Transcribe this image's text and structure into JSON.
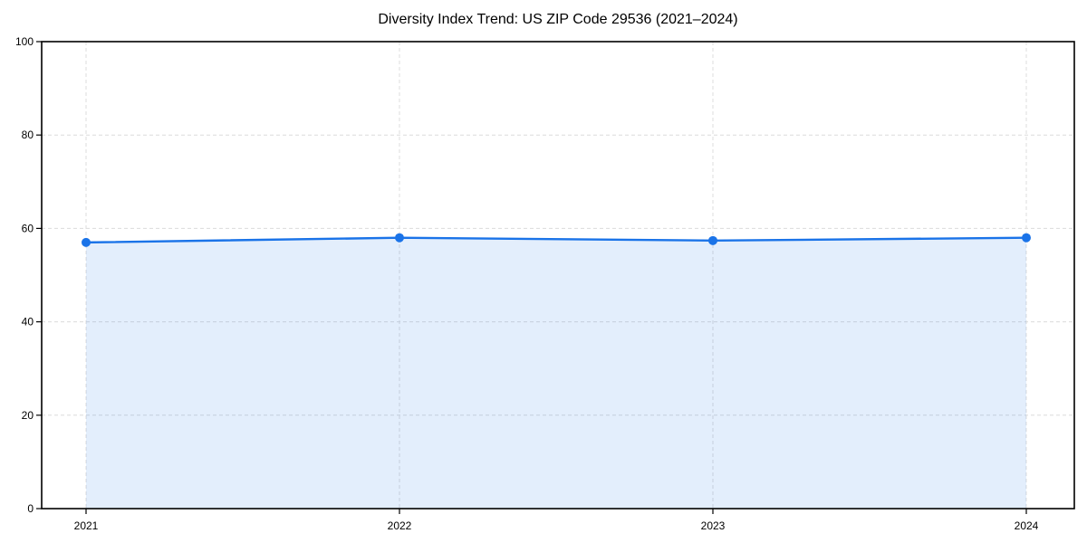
{
  "chart_data": {
    "type": "area",
    "title": "Diversity Index Trend: US ZIP Code 29536 (2021–2024)",
    "categories": [
      "2021",
      "2022",
      "2023",
      "2024"
    ],
    "series": [
      {
        "name": "Diversity Index",
        "values": [
          57.0,
          58.0,
          57.4,
          58.0
        ]
      }
    ],
    "xlabel": "",
    "ylabel": "",
    "ylim": [
      0,
      100
    ],
    "yticks": [
      0,
      20,
      40,
      60,
      80,
      100
    ],
    "grid": "both, dashed",
    "legend": "none",
    "marker": "circle",
    "colors": {
      "line": "#1a73e8",
      "marker": "#1a73e8",
      "area_fill": "#1a73e8",
      "area_opacity": 0.12,
      "grid": "#dcdcdc",
      "axis": "#000000",
      "tick_label": "#000000",
      "title": "#000000",
      "background": "#ffffff"
    }
  }
}
